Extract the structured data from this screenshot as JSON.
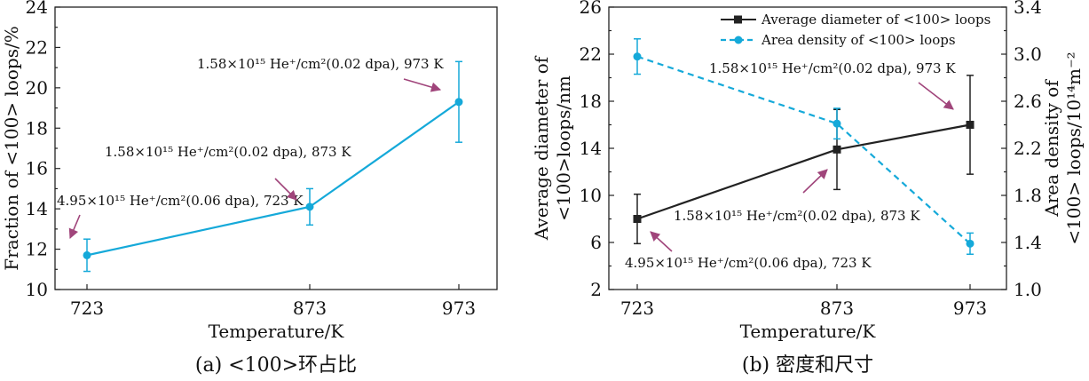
{
  "colors": {
    "cyan": "#15a9d9",
    "black": "#222222",
    "arrow": "#a0457b"
  },
  "chart_data": [
    {
      "type": "line",
      "caption": "(a) <100>环占比",
      "xlabel": "Temperature/K",
      "ylabel": "Fraction of <100> loops/%",
      "xticks": [
        "723",
        "873",
        "973"
      ],
      "x": [
        723,
        873,
        973
      ],
      "ylim": [
        10,
        24
      ],
      "yticks": [
        "10",
        "12",
        "14",
        "16",
        "18",
        "20",
        "22",
        "24"
      ],
      "grid": false,
      "series": [
        {
          "values": [
            11.7,
            14.1,
            19.3
          ],
          "err": [
            0.8,
            0.9,
            2.0
          ],
          "color": "#15a9d9",
          "marker": "circle"
        }
      ],
      "annotations": [
        {
          "text": "4.95×10¹⁵ He⁺/cm²(0.06 dpa), 723 K",
          "point": 0
        },
        {
          "text": "1.58×10¹⁵ He⁺/cm²(0.02 dpa), 873 K",
          "point": 1
        },
        {
          "text": "1.58×10¹⁵ He⁺/cm²(0.02 dpa), 973 K",
          "point": 2
        }
      ]
    },
    {
      "type": "line",
      "caption": "(b) 密度和尺寸",
      "xlabel": "Temperature/K",
      "ylabel_left": [
        "Average diameter of",
        "<100>loops/nm"
      ],
      "ylabel_right": [
        "Area density of",
        "<100> loops/10¹⁴m⁻²"
      ],
      "xticks": [
        "723",
        "873",
        "973"
      ],
      "x": [
        723,
        873,
        973
      ],
      "ylim_left": [
        2,
        26
      ],
      "yticks_left": [
        "2",
        "6",
        "10",
        "14",
        "18",
        "22",
        "26"
      ],
      "ylim_right": [
        1.0,
        3.4
      ],
      "yticks_right": [
        "1.0",
        "1.4",
        "1.8",
        "2.2",
        "2.6",
        "3.0",
        "3.4"
      ],
      "grid": false,
      "legend_position": "top-right",
      "series": [
        {
          "name": "Average diameter of <100> loops",
          "axis": "left",
          "values": [
            8.0,
            13.9,
            16.0
          ],
          "err": [
            2.1,
            3.4,
            4.2
          ],
          "color": "#222222",
          "marker": "square",
          "dash": false
        },
        {
          "name": "Area density of <100> loops",
          "axis": "right",
          "values": [
            2.98,
            2.41,
            1.39
          ],
          "err": [
            0.15,
            0.13,
            0.09
          ],
          "color": "#15a9d9",
          "marker": "circle",
          "dash": true
        }
      ],
      "annotations": [
        {
          "text": "4.95×10¹⁵ He⁺/cm²(0.06 dpa), 723 K",
          "point": 0
        },
        {
          "text": "1.58×10¹⁵ He⁺/cm²(0.02 dpa), 873 K",
          "point": 1
        },
        {
          "text": "1.58×10¹⁵ He⁺/cm²(0.02 dpa), 973 K",
          "point": 2
        }
      ]
    }
  ]
}
